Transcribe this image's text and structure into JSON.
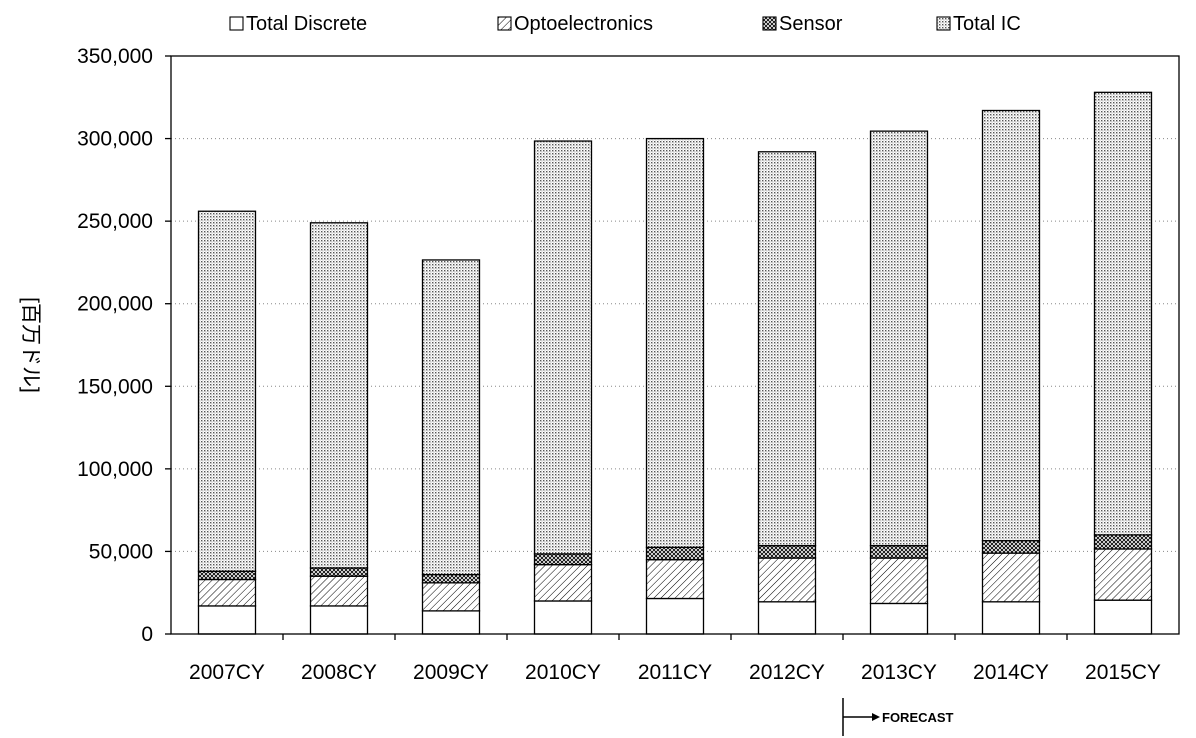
{
  "chart_data": {
    "type": "bar",
    "stacked": true,
    "categories": [
      "2007CY",
      "2008CY",
      "2009CY",
      "2010CY",
      "2011CY",
      "2012CY",
      "2013CY",
      "2014CY",
      "2015CY"
    ],
    "series": [
      {
        "name": "Total Discrete",
        "pattern": "white",
        "values": [
          17000,
          17000,
          14000,
          20000,
          21500,
          19500,
          18500,
          19500,
          20500
        ]
      },
      {
        "name": "Optoelectronics",
        "pattern": "diagonal-hatch",
        "values": [
          16000,
          18000,
          17000,
          22000,
          23500,
          26500,
          27500,
          29500,
          31000
        ]
      },
      {
        "name": "Sensor",
        "pattern": "cross-hatch",
        "values": [
          5000,
          5000,
          5000,
          6500,
          7500,
          7500,
          7500,
          7500,
          8500
        ]
      },
      {
        "name": "Total IC",
        "pattern": "dotted",
        "values": [
          218000,
          209000,
          190500,
          250000,
          247500,
          238500,
          251000,
          260500,
          268000
        ]
      }
    ],
    "ylabel": "[百万ドル]",
    "ylim": [
      0,
      350000
    ],
    "yticks": [
      0,
      50000,
      100000,
      150000,
      200000,
      250000,
      300000,
      350000
    ],
    "ytick_labels": [
      "0",
      "50,000",
      "100,000",
      "150,000",
      "200,000",
      "250,000",
      "300,000",
      "350,000"
    ],
    "grid": "dotted horizontal",
    "legend_position": "top",
    "annotation": {
      "text": "FORECAST",
      "start_category": "2013CY"
    }
  }
}
